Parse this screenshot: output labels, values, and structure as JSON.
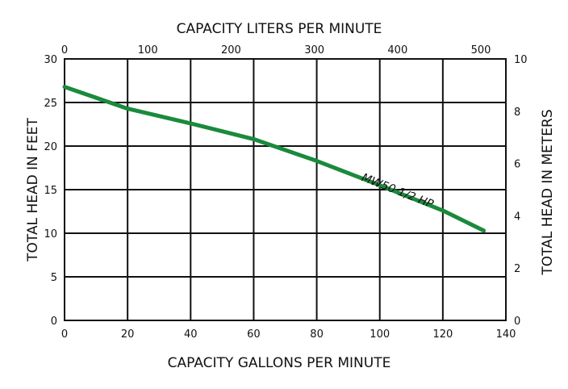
{
  "chart_data": {
    "type": "line",
    "title": "",
    "xlabel": "CAPACITY GALLONS PER MINUTE",
    "x2label": "CAPACITY LITERS PER MINUTE",
    "ylabel": "TOTAL HEAD IN FEET",
    "y2label": "TOTAL HEAD IN METERS",
    "xlim": [
      0,
      140
    ],
    "x2lim": [
      0,
      530
    ],
    "ylim": [
      0,
      30
    ],
    "y2lim": [
      0,
      10
    ],
    "x_ticks": [
      "0",
      "20",
      "40",
      "60",
      "80",
      "100",
      "120",
      "140"
    ],
    "x2_ticks": [
      "0",
      "100",
      "200",
      "300",
      "400",
      "500"
    ],
    "y_ticks": [
      "0",
      "5",
      "10",
      "15",
      "20",
      "25",
      "30"
    ],
    "y2_ticks": [
      "0",
      "2",
      "4",
      "6",
      "8",
      "10"
    ],
    "grid": true,
    "line_color": "#1a8a3c",
    "series": [
      {
        "name": "MW50 1/2 HP",
        "x": [
          0,
          20,
          40,
          60,
          80,
          100,
          120,
          133
        ],
        "y": [
          26.8,
          24.3,
          22.6,
          20.8,
          18.3,
          15.5,
          12.6,
          10.3
        ]
      }
    ]
  }
}
